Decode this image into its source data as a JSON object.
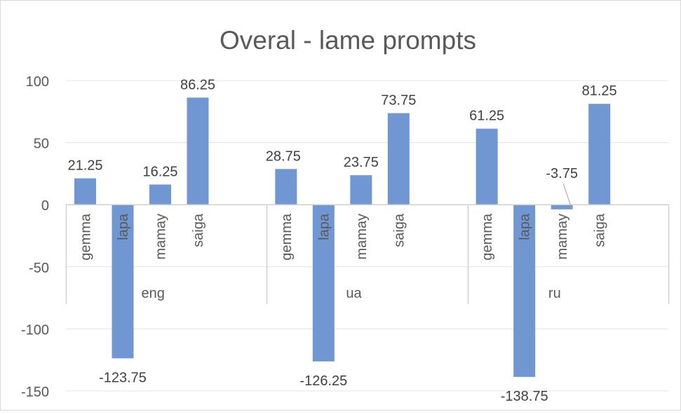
{
  "chart_data": {
    "type": "bar",
    "title": "Overal - lame prompts",
    "xlabel": "",
    "ylabel": "",
    "ylim": [
      -150,
      100
    ],
    "yticks": [
      100,
      50,
      0,
      -50,
      -100,
      -150
    ],
    "grid": true,
    "legend": "none",
    "bar_color": "#7197d3",
    "groups": [
      {
        "name": "eng",
        "categories": [
          "gemma",
          "lapa",
          "mamay",
          "saiga"
        ],
        "values": [
          21.25,
          -123.75,
          16.25,
          86.25
        ],
        "labels": [
          "21.25",
          "-123.75",
          "16.25",
          "86.25"
        ]
      },
      {
        "name": "ua",
        "categories": [
          "gemma",
          "lapa",
          "mamay",
          "saiga"
        ],
        "values": [
          28.75,
          -126.25,
          23.75,
          73.75
        ],
        "labels": [
          "28.75",
          "-126.25",
          "23.75",
          "73.75"
        ]
      },
      {
        "name": "ru",
        "categories": [
          "gemma",
          "lapa",
          "mamay",
          "saiga"
        ],
        "values": [
          61.25,
          -138.75,
          -3.75,
          81.25
        ],
        "labels": [
          "61.25",
          "-138.75",
          "-3.75",
          "81.25"
        ]
      }
    ]
  }
}
